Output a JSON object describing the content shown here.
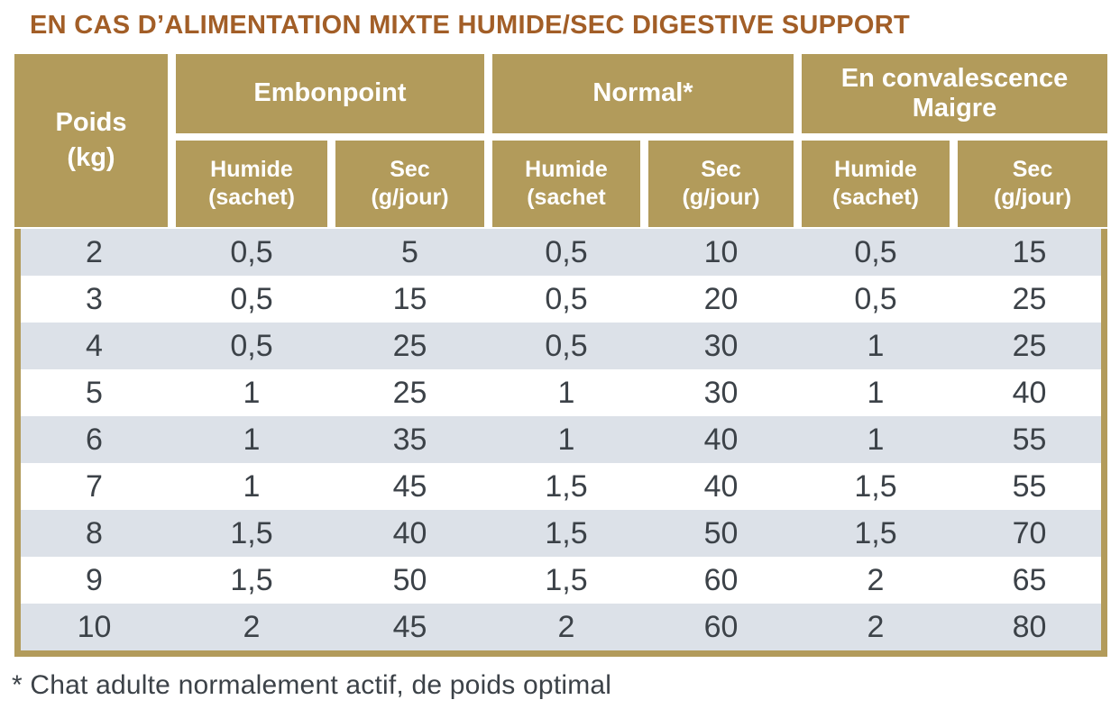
{
  "title": "EN CAS D’ALIMENTATION MIXTE HUMIDE/SEC DIGESTIVE SUPPORT",
  "colors": {
    "header_gold": "#B29B5B",
    "title_brown": "#A25E27",
    "row_alt": "#DCE1E8",
    "row_plain": "#FFFFFF",
    "data_text": "#3C4248",
    "header_text": "#FFFFFF"
  },
  "table": {
    "weight_header": {
      "line1": "Poids",
      "line2": "(kg)"
    },
    "groups": [
      {
        "label": "Embonpoint"
      },
      {
        "label": "Normal*"
      },
      {
        "label": "En convalescence\nMaigre"
      }
    ],
    "sub_headers": [
      {
        "line1": "Humide",
        "line2": "(sachet)"
      },
      {
        "line1": "Sec",
        "line2": "(g/jour)"
      },
      {
        "line1": "Humide",
        "line2": "(sachet"
      },
      {
        "line1": "Sec",
        "line2": "(g/jour)"
      },
      {
        "line1": "Humide",
        "line2": "(sachet)"
      },
      {
        "line1": "Sec",
        "line2": "(g/jour)"
      }
    ],
    "rows": [
      [
        "2",
        "0,5",
        "5",
        "0,5",
        "10",
        "0,5",
        "15"
      ],
      [
        "3",
        "0,5",
        "15",
        "0,5",
        "20",
        "0,5",
        "25"
      ],
      [
        "4",
        "0,5",
        "25",
        "0,5",
        "30",
        "1",
        "25"
      ],
      [
        "5",
        "1",
        "25",
        "1",
        "30",
        "1",
        "40"
      ],
      [
        "6",
        "1",
        "35",
        "1",
        "40",
        "1",
        "55"
      ],
      [
        "7",
        "1",
        "45",
        "1,5",
        "40",
        "1,5",
        "55"
      ],
      [
        "8",
        "1,5",
        "40",
        "1,5",
        "50",
        "1,5",
        "70"
      ],
      [
        "9",
        "1,5",
        "50",
        "1,5",
        "60",
        "2",
        "65"
      ],
      [
        "10",
        "2",
        "45",
        "2",
        "60",
        "2",
        "80"
      ]
    ]
  },
  "footnote": "* Chat adulte normalement actif, de poids optimal"
}
